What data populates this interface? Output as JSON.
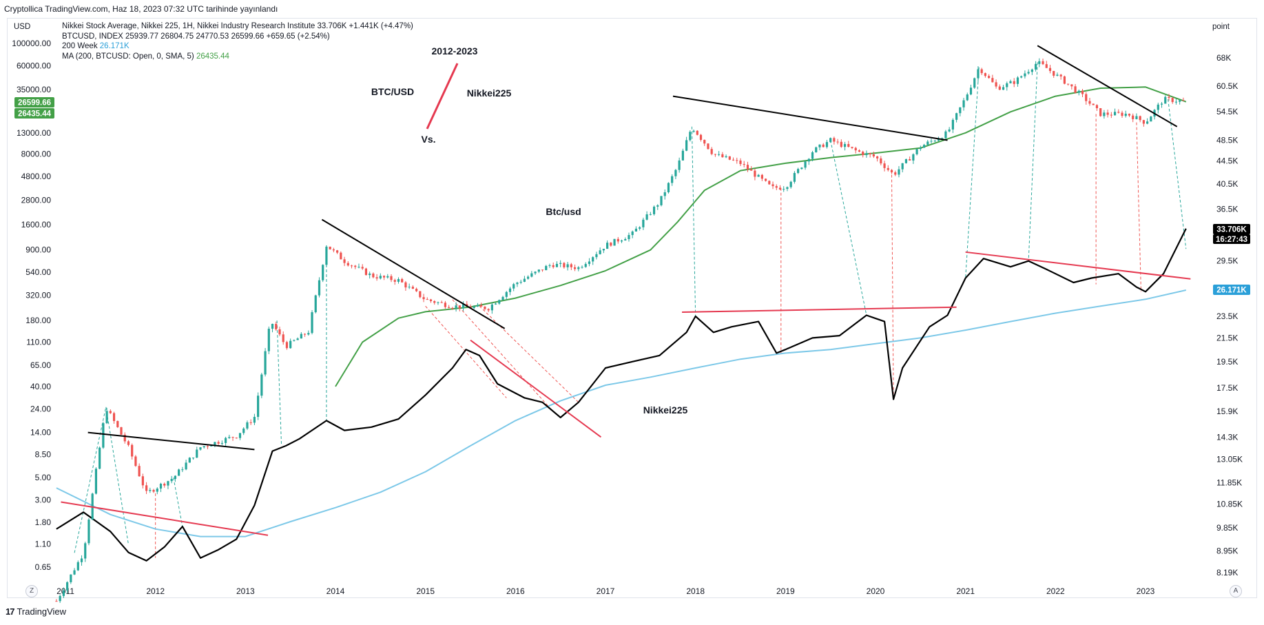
{
  "header": {
    "published_by": "Cryptollica TradingView.com, Haz 18, 2023 07:32 UTC tarihinde yayınlandı"
  },
  "scale_units": {
    "left": "USD",
    "right": "point"
  },
  "legend": {
    "nikkei_line": "Nikkei Stock Average, Nikkei 225, 1H, Nikkei Industry Research Institute  33.706K  +1.441K (+4.47%)",
    "btc_line": "BTCUSD, INDEX  25939.77  26804.75  24770.53  26599.66  +659.65 (+2.54%)",
    "week200_label": "200 Week",
    "week200_value": "26.171K",
    "ma_label": "MA (200, BTCUSD: Open, 0, SMA, 5)",
    "ma_value": "26435.44"
  },
  "buttons": {
    "goto_label": "Z",
    "auto_label": "A"
  },
  "footer": {
    "brand": "TradingView",
    "logo": "17"
  },
  "colors": {
    "candle_up": "#26a69a",
    "candle_down": "#ef5350",
    "ma_green": "#43a047",
    "week200_blue": "#7cc8e8",
    "nikkei_line": "#000000",
    "trend_black": "#000000",
    "trend_red": "#e53950",
    "nikkei_badge": "#000000",
    "week200_badge": "#2a9fd8",
    "btc_badge": "#43a047"
  },
  "chart_data": {
    "type": "line",
    "title": "",
    "x_ticks": [
      "2011",
      "2012",
      "2013",
      "2014",
      "2015",
      "2016",
      "2017",
      "2018",
      "2019",
      "2020",
      "2021",
      "2022",
      "2023"
    ],
    "left_axis": {
      "unit": "USD",
      "scale": "log",
      "tick_labels": [
        "100000.00",
        "60000.00",
        "35000.00",
        "13000.00",
        "8000.00",
        "4800.00",
        "2800.00",
        "1600.00",
        "900.00",
        "540.00",
        "320.00",
        "180.00",
        "110.00",
        "65.00",
        "40.00",
        "24.00",
        "14.00",
        "8.50",
        "5.00",
        "3.00",
        "1.80",
        "1.10",
        "0.65"
      ],
      "price_badges": [
        "26599.66",
        "26435.44"
      ]
    },
    "right_axis": {
      "unit": "point",
      "scale": "log",
      "tick_labels": [
        "68K",
        "60.5K",
        "54.5K",
        "48.5K",
        "44.5K",
        "40.5K",
        "36.5K",
        "29.5K",
        "23.5K",
        "21.5K",
        "19.5K",
        "17.5K",
        "15.9K",
        "14.3K",
        "13.05K",
        "11.85K",
        "10.85K",
        "9.85K",
        "8.95K",
        "8.19K"
      ],
      "price_badges": [
        "33.706K",
        "16:27:43",
        "26.171K"
      ]
    },
    "annotations": [
      "2012-2023",
      "BTC/USD",
      "Nikkei225",
      "Vs.",
      "Btc/usd",
      "Nikkei225"
    ],
    "series": [
      {
        "name": "BTCUSD",
        "style": "candles",
        "x": [
          2010.9,
          2011.2,
          2011.45,
          2011.7,
          2011.9,
          2012.2,
          2012.5,
          2012.9,
          2013.1,
          2013.28,
          2013.45,
          2013.7,
          2013.9,
          2014.1,
          2014.4,
          2014.7,
          2015.0,
          2015.3,
          2015.7,
          2016.0,
          2016.4,
          2016.7,
          2017.0,
          2017.3,
          2017.6,
          2017.8,
          2017.96,
          2018.2,
          2018.5,
          2018.85,
          2019.0,
          2019.3,
          2019.5,
          2019.8,
          2020.0,
          2020.2,
          2020.5,
          2020.8,
          2021.0,
          2021.15,
          2021.35,
          2021.55,
          2021.8,
          2021.9,
          2022.1,
          2022.3,
          2022.5,
          2022.8,
          2023.0,
          2023.2,
          2023.45
        ],
        "values": [
          0.3,
          0.9,
          25,
          10,
          3.5,
          5,
          10,
          13,
          20,
          180,
          100,
          140,
          1000,
          700,
          500,
          450,
          290,
          250,
          240,
          420,
          650,
          600,
          1000,
          1300,
          2700,
          6000,
          15000,
          8000,
          6500,
          3700,
          3800,
          8500,
          11000,
          8500,
          7500,
          5000,
          9500,
          13000,
          29000,
          58000,
          36000,
          42000,
          65000,
          57000,
          42000,
          30000,
          20000,
          20000,
          16500,
          28000,
          26600
        ]
      },
      {
        "name": "MA (200, BTCUSD: Open, 0, SMA, 5)",
        "x": [
          2014.0,
          2014.3,
          2014.7,
          2015.0,
          2015.5,
          2016.0,
          2016.5,
          2017.0,
          2017.5,
          2017.8,
          2018.1,
          2018.5,
          2019.0,
          2019.5,
          2020.0,
          2020.5,
          2021.0,
          2021.5,
          2022.0,
          2022.5,
          2023.0,
          2023.45
        ],
        "values": [
          40,
          110,
          190,
          220,
          245,
          300,
          400,
          560,
          900,
          1700,
          3500,
          5500,
          6500,
          7400,
          8200,
          9200,
          13000,
          21000,
          30000,
          36000,
          37000,
          26435
        ]
      },
      {
        "name": "Nikkei 225",
        "x": [
          2010.9,
          2011.2,
          2011.5,
          2011.7,
          2011.9,
          2012.1,
          2012.3,
          2012.5,
          2012.7,
          2012.9,
          2013.1,
          2013.3,
          2013.45,
          2013.6,
          2013.9,
          2014.1,
          2014.4,
          2014.7,
          2015.0,
          2015.3,
          2015.45,
          2015.6,
          2015.8,
          2016.1,
          2016.3,
          2016.5,
          2016.7,
          2017.0,
          2017.3,
          2017.6,
          2017.9,
          2018.0,
          2018.2,
          2018.4,
          2018.7,
          2018.9,
          2019.0,
          2019.3,
          2019.6,
          2019.9,
          2020.1,
          2020.2,
          2020.3,
          2020.6,
          2020.8,
          2021.0,
          2021.2,
          2021.5,
          2021.7,
          2021.9,
          2022.2,
          2022.4,
          2022.7,
          2022.9,
          2023.0,
          2023.2,
          2023.45
        ],
        "values": [
          9800,
          10500,
          9700,
          8900,
          8600,
          9100,
          9900,
          8700,
          9000,
          9400,
          10800,
          13500,
          13800,
          14200,
          15300,
          14700,
          14900,
          15400,
          17000,
          19000,
          20500,
          20000,
          17800,
          16800,
          16500,
          15500,
          16500,
          19000,
          19500,
          20000,
          22000,
          23500,
          22000,
          22500,
          23000,
          20200,
          20500,
          21500,
          21700,
          23600,
          23000,
          16700,
          19000,
          22500,
          23600,
          27500,
          29800,
          28800,
          29500,
          28500,
          27000,
          27500,
          28000,
          26500,
          26000,
          28000,
          33706
        ]
      },
      {
        "name": "200 Week",
        "x": [
          2010.9,
          2011.5,
          2012.0,
          2012.5,
          2013.0,
          2013.5,
          2014.0,
          2014.5,
          2015.0,
          2015.5,
          2016.0,
          2016.5,
          2017.0,
          2017.5,
          2018.0,
          2018.5,
          2019.0,
          2019.5,
          2020.0,
          2020.5,
          2021.0,
          2021.5,
          2022.0,
          2022.5,
          2023.0,
          2023.45
        ],
        "values": [
          11600,
          10400,
          9800,
          9500,
          9500,
          10100,
          10700,
          11400,
          12400,
          13800,
          15300,
          16600,
          17700,
          18300,
          19000,
          19700,
          20200,
          20500,
          21000,
          21500,
          22200,
          23000,
          23800,
          24500,
          25200,
          26171
        ]
      }
    ]
  }
}
